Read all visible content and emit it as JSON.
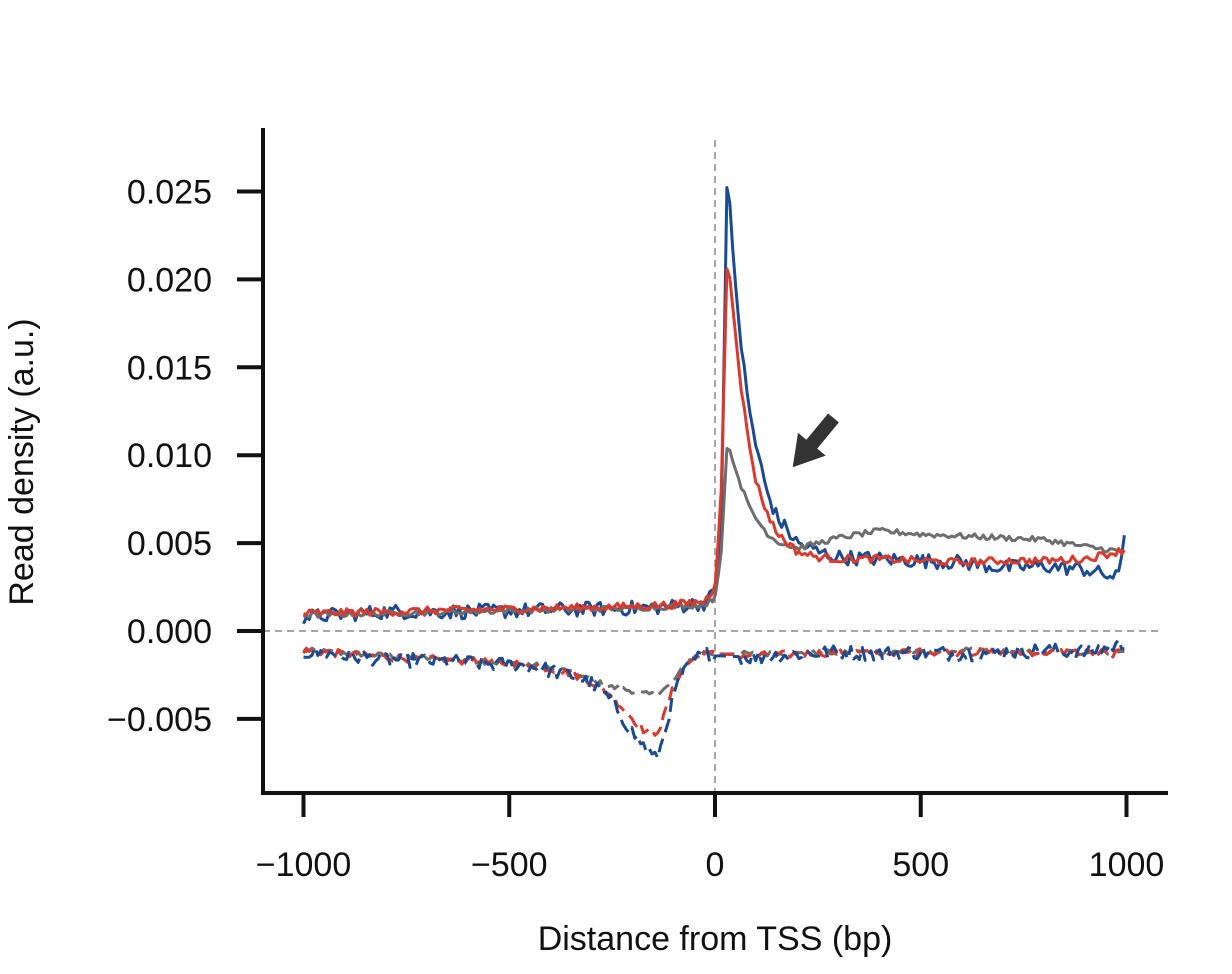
{
  "chart_data": {
    "type": "line",
    "title": "",
    "xlabel": "Distance from TSS (bp)",
    "ylabel": "Read density (a.u.)",
    "xlim": [
      -1100,
      1100
    ],
    "ylim": [
      -0.009,
      0.028
    ],
    "x_ticks": [
      -1000,
      -500,
      0,
      500,
      1000
    ],
    "x_tick_labels": [
      "−1000",
      "−500",
      "0",
      "500",
      "1000"
    ],
    "y_ticks": [
      0.025,
      0.02,
      0.015,
      0.01,
      0.005,
      0.0,
      -0.005
    ],
    "y_tick_labels": [
      "0.025",
      "0.020",
      "0.015",
      "0.010",
      "0.005",
      "0.000",
      "−0.005"
    ],
    "grid": false,
    "legend": "none",
    "reference_lines": [
      {
        "orientation": "horizontal",
        "value": 0,
        "style": "dashed",
        "color": "#888888"
      },
      {
        "orientation": "vertical",
        "value": 0,
        "style": "dashed",
        "color": "#888888"
      }
    ],
    "annotations": [
      {
        "type": "arrow",
        "points_to": {
          "x": 150,
          "y": 0.015
        },
        "color": "#333333"
      }
    ],
    "series": [
      {
        "color": "#1a4a8f",
        "style": "solid",
        "points": [
          [
            -1000,
            0.0008
          ],
          [
            -800,
            0.0011
          ],
          [
            -600,
            0.0011
          ],
          [
            -400,
            0.0012
          ],
          [
            -200,
            0.0013
          ],
          [
            -100,
            0.0014
          ],
          [
            -25,
            0.0016
          ],
          [
            0,
            0.0022
          ],
          [
            15,
            0.006
          ],
          [
            30,
            0.0266
          ],
          [
            45,
            0.021
          ],
          [
            60,
            0.017
          ],
          [
            80,
            0.013
          ],
          [
            100,
            0.0105
          ],
          [
            125,
            0.008
          ],
          [
            150,
            0.0065
          ],
          [
            200,
            0.005
          ],
          [
            250,
            0.0045
          ],
          [
            300,
            0.0042
          ],
          [
            400,
            0.0041
          ],
          [
            500,
            0.004
          ],
          [
            600,
            0.0039
          ],
          [
            700,
            0.0036
          ],
          [
            800,
            0.0037
          ],
          [
            900,
            0.0035
          ],
          [
            980,
            0.003
          ],
          [
            995,
            0.0055
          ]
        ]
      },
      {
        "color": "#d93a2e",
        "style": "solid",
        "points": [
          [
            -1000,
            0.001
          ],
          [
            -800,
            0.0011
          ],
          [
            -600,
            0.0012
          ],
          [
            -400,
            0.0013
          ],
          [
            -200,
            0.0014
          ],
          [
            -100,
            0.0015
          ],
          [
            -25,
            0.0017
          ],
          [
            0,
            0.0025
          ],
          [
            15,
            0.008
          ],
          [
            30,
            0.0215
          ],
          [
            45,
            0.018
          ],
          [
            60,
            0.0145
          ],
          [
            80,
            0.011
          ],
          [
            100,
            0.0085
          ],
          [
            125,
            0.0068
          ],
          [
            150,
            0.0056
          ],
          [
            200,
            0.0045
          ],
          [
            250,
            0.0042
          ],
          [
            300,
            0.0041
          ],
          [
            400,
            0.0041
          ],
          [
            500,
            0.004
          ],
          [
            600,
            0.0039
          ],
          [
            700,
            0.004
          ],
          [
            800,
            0.004
          ],
          [
            900,
            0.0041
          ],
          [
            995,
            0.0046
          ]
        ]
      },
      {
        "color": "#6d6d6d",
        "style": "solid",
        "points": [
          [
            -1000,
            0.0009
          ],
          [
            -800,
            0.001
          ],
          [
            -600,
            0.0011
          ],
          [
            -400,
            0.0012
          ],
          [
            -200,
            0.0013
          ],
          [
            -100,
            0.0014
          ],
          [
            -25,
            0.0015
          ],
          [
            0,
            0.0019
          ],
          [
            15,
            0.0045
          ],
          [
            30,
            0.0108
          ],
          [
            45,
            0.0095
          ],
          [
            60,
            0.0085
          ],
          [
            80,
            0.0072
          ],
          [
            100,
            0.0064
          ],
          [
            125,
            0.0056
          ],
          [
            150,
            0.0051
          ],
          [
            200,
            0.0047
          ],
          [
            250,
            0.005
          ],
          [
            300,
            0.0053
          ],
          [
            400,
            0.0057
          ],
          [
            500,
            0.0055
          ],
          [
            600,
            0.0054
          ],
          [
            700,
            0.0053
          ],
          [
            800,
            0.0052
          ],
          [
            900,
            0.0048
          ],
          [
            995,
            0.0045
          ]
        ]
      },
      {
        "color": "#1a4a8f",
        "style": "dashed",
        "points": [
          [
            -1000,
            -0.0012
          ],
          [
            -800,
            -0.0016
          ],
          [
            -600,
            -0.0018
          ],
          [
            -450,
            -0.002
          ],
          [
            -350,
            -0.0025
          ],
          [
            -300,
            -0.003
          ],
          [
            -250,
            -0.004
          ],
          [
            -200,
            -0.0058
          ],
          [
            -170,
            -0.0066
          ],
          [
            -145,
            -0.0073
          ],
          [
            -130,
            -0.0065
          ],
          [
            -110,
            -0.0045
          ],
          [
            -90,
            -0.003
          ],
          [
            -60,
            -0.0018
          ],
          [
            -25,
            -0.0013
          ],
          [
            0,
            -0.0014
          ],
          [
            100,
            -0.0015
          ],
          [
            200,
            -0.0013
          ],
          [
            300,
            -0.0012
          ],
          [
            400,
            -0.0013
          ],
          [
            500,
            -0.0012
          ],
          [
            600,
            -0.0013
          ],
          [
            700,
            -0.0012
          ],
          [
            800,
            -0.0011
          ],
          [
            900,
            -0.0012
          ],
          [
            1000,
            -0.0007
          ]
        ]
      },
      {
        "color": "#d93a2e",
        "style": "dashed",
        "points": [
          [
            -1000,
            -0.0011
          ],
          [
            -800,
            -0.0015
          ],
          [
            -600,
            -0.0017
          ],
          [
            -450,
            -0.0019
          ],
          [
            -350,
            -0.0024
          ],
          [
            -300,
            -0.0029
          ],
          [
            -250,
            -0.0037
          ],
          [
            -200,
            -0.005
          ],
          [
            -170,
            -0.0057
          ],
          [
            -145,
            -0.0058
          ],
          [
            -130,
            -0.0053
          ],
          [
            -110,
            -0.0038
          ],
          [
            -90,
            -0.0026
          ],
          [
            -60,
            -0.0017
          ],
          [
            -25,
            -0.0013
          ],
          [
            0,
            -0.0013
          ],
          [
            100,
            -0.0014
          ],
          [
            200,
            -0.0013
          ],
          [
            300,
            -0.0012
          ],
          [
            400,
            -0.0012
          ],
          [
            500,
            -0.0012
          ],
          [
            600,
            -0.0012
          ],
          [
            700,
            -0.0012
          ],
          [
            800,
            -0.0012
          ],
          [
            900,
            -0.0012
          ],
          [
            1000,
            -0.0013
          ]
        ]
      },
      {
        "color": "#6d6d6d",
        "style": "dashed",
        "points": [
          [
            -1000,
            -0.0011
          ],
          [
            -800,
            -0.0014
          ],
          [
            -600,
            -0.0017
          ],
          [
            -450,
            -0.0019
          ],
          [
            -350,
            -0.0023
          ],
          [
            -300,
            -0.0028
          ],
          [
            -250,
            -0.0032
          ],
          [
            -200,
            -0.0034
          ],
          [
            -170,
            -0.0036
          ],
          [
            -145,
            -0.0036
          ],
          [
            -110,
            -0.0031
          ],
          [
            -90,
            -0.0025
          ],
          [
            -60,
            -0.0016
          ],
          [
            -25,
            -0.0012
          ],
          [
            0,
            -0.0013
          ],
          [
            100,
            -0.0013
          ],
          [
            200,
            -0.0013
          ],
          [
            300,
            -0.0012
          ],
          [
            400,
            -0.0012
          ],
          [
            500,
            -0.0012
          ],
          [
            600,
            -0.0011
          ],
          [
            700,
            -0.0012
          ],
          [
            800,
            -0.0012
          ],
          [
            900,
            -0.0012
          ],
          [
            1000,
            -0.0012
          ]
        ]
      }
    ]
  }
}
